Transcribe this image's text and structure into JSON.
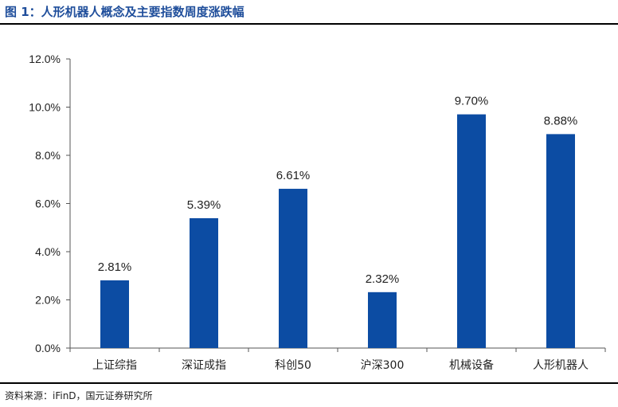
{
  "figure": {
    "title": "图 1：人形机器人概念及主要指数周度涨跌幅",
    "source": "资料来源：iFinD，国元证券研究所"
  },
  "chart_data": {
    "type": "bar",
    "title": "",
    "xlabel": "",
    "ylabel": "",
    "categories": [
      "上证综指",
      "深证成指",
      "科创50",
      "沪深300",
      "机械设备",
      "人形机器人"
    ],
    "values": [
      2.81,
      5.39,
      6.61,
      2.32,
      9.7,
      8.88
    ],
    "data_labels": [
      "2.81%",
      "5.39%",
      "6.61%",
      "2.32%",
      "9.70%",
      "8.88%"
    ],
    "ylim": [
      0,
      12
    ],
    "yticks": [
      0,
      2,
      4,
      6,
      8,
      10,
      12
    ],
    "ytick_labels": [
      "0.0%",
      "2.0%",
      "4.0%",
      "6.0%",
      "8.0%",
      "10.0%",
      "12.0%"
    ],
    "grid": false,
    "legend": "none",
    "bar_color": "#0c4ca3"
  }
}
